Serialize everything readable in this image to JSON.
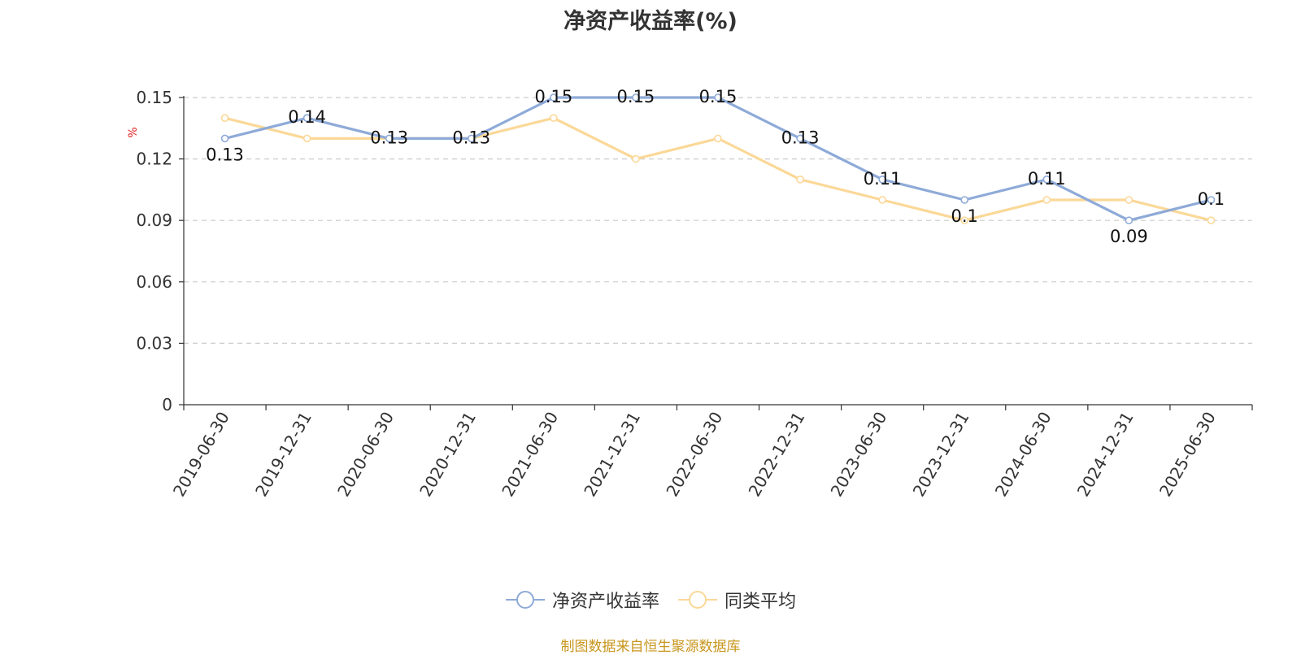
{
  "chart_data": {
    "type": "line",
    "title": "净资产收益率(%)",
    "ylabel": "%",
    "categories": [
      "2019-06-30",
      "2019-12-31",
      "2020-06-30",
      "2020-12-31",
      "2021-06-30",
      "2021-12-31",
      "2022-06-30",
      "2022-12-31",
      "2023-06-30",
      "2023-12-31",
      "2024-06-30",
      "2024-12-31",
      "2025-06-30"
    ],
    "ylim": [
      0,
      0.15
    ],
    "yticks": [
      "0",
      "0.03",
      "0.06",
      "0.09",
      "0.12",
      "0.15"
    ],
    "grid": true,
    "legend_position": "bottom",
    "series": [
      {
        "name": "净资产收益率",
        "color": "#8eaad8",
        "values": [
          0.13,
          0.14,
          0.13,
          0.13,
          0.15,
          0.15,
          0.15,
          0.13,
          0.11,
          0.1,
          0.11,
          0.09,
          0.1
        ],
        "labels": [
          "0.13",
          "0.14",
          "0.13",
          "0.13",
          "0.15",
          "0.15",
          "0.15",
          "0.13",
          "0.11",
          "0.1",
          "0.11",
          "0.09",
          "0.1"
        ]
      },
      {
        "name": "同类平均",
        "color": "#fbd898",
        "values": [
          0.14,
          0.13,
          0.13,
          0.13,
          0.14,
          0.12,
          0.13,
          0.11,
          0.1,
          0.09,
          0.1,
          0.1,
          0.09
        ]
      }
    ]
  },
  "source_text": "制图数据来自恒生聚源数据库"
}
